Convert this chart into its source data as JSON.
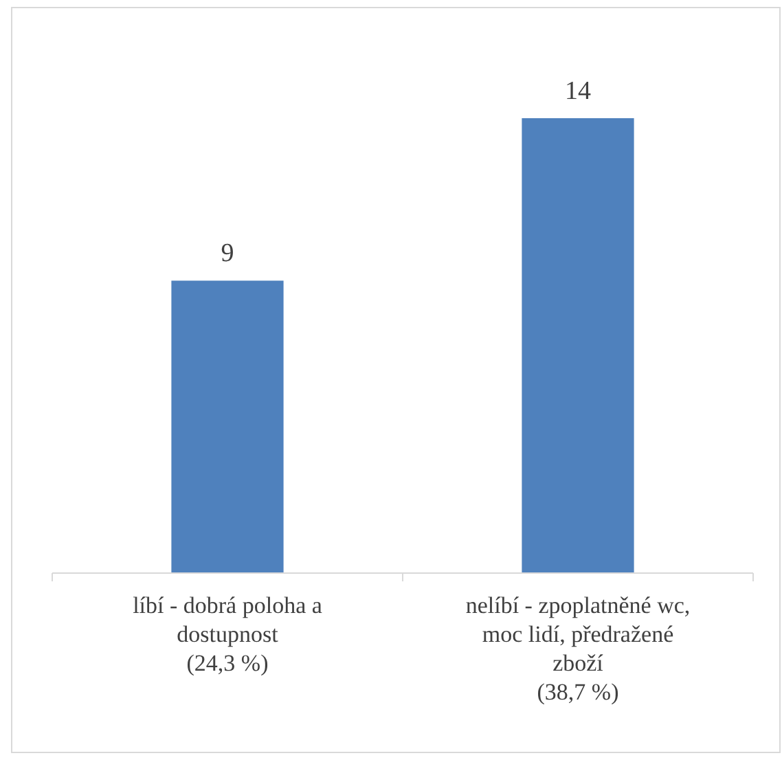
{
  "chart_data": {
    "type": "bar",
    "categories": [
      "líbí - dobrá poloha a\ndostupnost\n(24,3 %)",
      "nelíbí - zpoplatněné wc,\nmoc lidí, předražené\nzboží\n(38,7 %)"
    ],
    "values": [
      9,
      14
    ],
    "color": "#4f81bd",
    "data_labels": true
  }
}
